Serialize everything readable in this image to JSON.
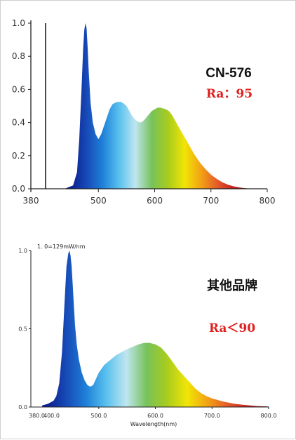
{
  "chart_data": [
    {
      "type": "area",
      "title": "CN-576",
      "annotation": "Ra：95",
      "xlabel": "",
      "ylabel": "",
      "xlim": [
        380,
        800
      ],
      "ylim": [
        0,
        1.0
      ],
      "x_ticks": [
        "380",
        "500",
        "600",
        "700",
        "800"
      ],
      "y_ticks": [
        "0.0",
        "0.2",
        "0.4",
        "0.6",
        "0.8",
        "1.0"
      ],
      "grid": false,
      "series": [
        {
          "x": [
            440,
            455,
            462,
            466,
            470,
            473,
            475,
            477,
            479,
            481,
            483,
            486,
            490,
            495,
            500,
            505,
            510,
            515,
            520,
            525,
            530,
            535,
            540,
            545,
            550,
            555,
            560,
            565,
            570,
            575,
            580,
            585,
            590,
            595,
            600,
            605,
            610,
            615,
            620,
            625,
            630,
            635,
            640,
            650,
            660,
            670,
            680,
            690,
            700,
            710,
            720,
            730,
            740,
            750,
            760,
            770,
            780
          ],
          "y": [
            0,
            0.02,
            0.1,
            0.3,
            0.6,
            0.85,
            0.96,
            1.0,
            0.97,
            0.85,
            0.7,
            0.52,
            0.4,
            0.33,
            0.3,
            0.33,
            0.38,
            0.43,
            0.48,
            0.51,
            0.52,
            0.525,
            0.525,
            0.515,
            0.5,
            0.47,
            0.44,
            0.42,
            0.405,
            0.4,
            0.41,
            0.43,
            0.45,
            0.47,
            0.48,
            0.49,
            0.49,
            0.485,
            0.48,
            0.47,
            0.45,
            0.42,
            0.39,
            0.33,
            0.27,
            0.21,
            0.16,
            0.12,
            0.085,
            0.06,
            0.04,
            0.025,
            0.015,
            0.008,
            0.004,
            0.001,
            0
          ]
        }
      ]
    },
    {
      "type": "area",
      "title": "其他品牌",
      "annotation": "Ra＜90",
      "peak_label": "1. 0=129mW/nm",
      "xlabel": "Wavelength(nm)",
      "ylabel": "",
      "xlim": [
        380,
        800
      ],
      "ylim": [
        0,
        1.0
      ],
      "x_ticks": [
        "380.0",
        "400.0",
        "500.0",
        "600.0",
        "700.0",
        "800.0"
      ],
      "y_ticks": [
        "0.0",
        "0.5",
        "1.0"
      ],
      "grid": false,
      "series": [
        {
          "x": [
            400,
            410,
            420,
            425,
            430,
            435,
            440,
            443,
            446,
            448,
            450,
            452,
            454,
            456,
            458,
            461,
            465,
            470,
            475,
            480,
            485,
            490,
            495,
            500,
            510,
            520,
            530,
            540,
            550,
            560,
            570,
            580,
            590,
            600,
            610,
            620,
            630,
            640,
            650,
            660,
            670,
            680,
            690,
            700,
            720,
            740,
            760,
            780,
            800
          ],
          "y": [
            0.01,
            0.02,
            0.04,
            0.07,
            0.15,
            0.35,
            0.7,
            0.9,
            0.98,
            1.0,
            0.97,
            0.9,
            0.78,
            0.65,
            0.52,
            0.4,
            0.3,
            0.22,
            0.17,
            0.14,
            0.13,
            0.14,
            0.18,
            0.22,
            0.27,
            0.3,
            0.33,
            0.35,
            0.37,
            0.385,
            0.4,
            0.41,
            0.41,
            0.4,
            0.38,
            0.34,
            0.29,
            0.24,
            0.2,
            0.16,
            0.12,
            0.09,
            0.07,
            0.055,
            0.035,
            0.02,
            0.012,
            0.006,
            0.003
          ]
        }
      ]
    }
  ],
  "spectrum_colors": [
    "#0b1a8a",
    "#1747b6",
    "#1e7fd8",
    "#58c0ee",
    "#bfe6f0",
    "#77c25a",
    "#a8cc1e",
    "#f1e506",
    "#f2a215",
    "#e45a2a",
    "#c81d1d",
    "#6d0a12"
  ],
  "chart_colors": {
    "axis": "#222222",
    "tick_text": "#333333",
    "title": "#111111",
    "annotation": "#e02020"
  }
}
